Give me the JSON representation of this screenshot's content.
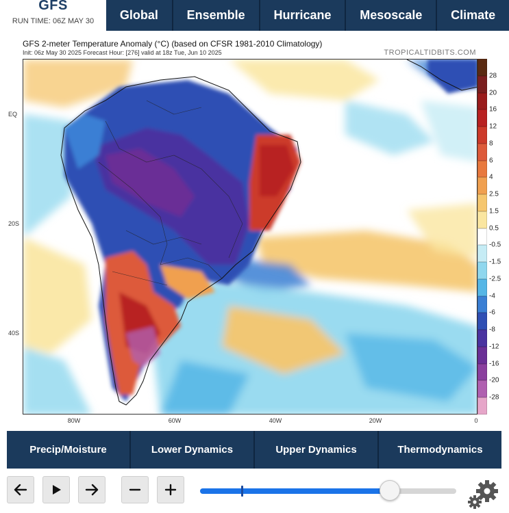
{
  "brand": {
    "name": "GFS",
    "run_time": "RUN TIME: 06Z MAY 30"
  },
  "top_nav": [
    "Global",
    "Ensemble",
    "Hurricane",
    "Mesoscale",
    "Climate"
  ],
  "map": {
    "title": "GFS 2-meter Temperature Anomaly (°C) (based on CFSR 1981-2010 Climatology)",
    "init_line": "Init: 06z May 30 2025   Forecast Hour: [276]   valid at 18z Tue, Jun 10 2025",
    "site": "TROPICALTIDBITS.COM",
    "lat_labels": [
      "EQ",
      "20S",
      "40S"
    ],
    "lon_labels": [
      "80W",
      "60W",
      "40W",
      "20W",
      "0"
    ]
  },
  "colorbar": {
    "labels": [
      "28",
      "20",
      "16",
      "12",
      "8",
      "6",
      "4",
      "2.5",
      "1.5",
      "0.5",
      "-0.5",
      "-1.5",
      "-2.5",
      "-4",
      "-6",
      "-8",
      "-12",
      "-16",
      "-20",
      "-28"
    ],
    "colors": [
      "#5a2a12",
      "#7a1f1f",
      "#9a1c1c",
      "#b82222",
      "#cc3a2a",
      "#dd5a3a",
      "#e8793e",
      "#f0a050",
      "#f5c66e",
      "#fae6a0",
      "#ffffff",
      "#c6ecf5",
      "#8fd7ee",
      "#55b6e6",
      "#3a7fd4",
      "#2f4fb4",
      "#4a33a0",
      "#6a2f96",
      "#8a3f9e",
      "#b060b0",
      "#e6a6c9"
    ]
  },
  "bottom_tabs": [
    "Precip/Moisture",
    "Lower Dynamics",
    "Upper Dynamics",
    "Thermodynamics"
  ],
  "controls": {
    "back_icon": "arrow-left-icon",
    "play_icon": "play-icon",
    "forward_icon": "arrow-right-icon",
    "zoom_out_icon": "minus-icon",
    "zoom_in_icon": "plus-icon",
    "settings_icon": "gear-icon",
    "timeline_progress": 0.74,
    "timeline_marker": 0.16
  }
}
